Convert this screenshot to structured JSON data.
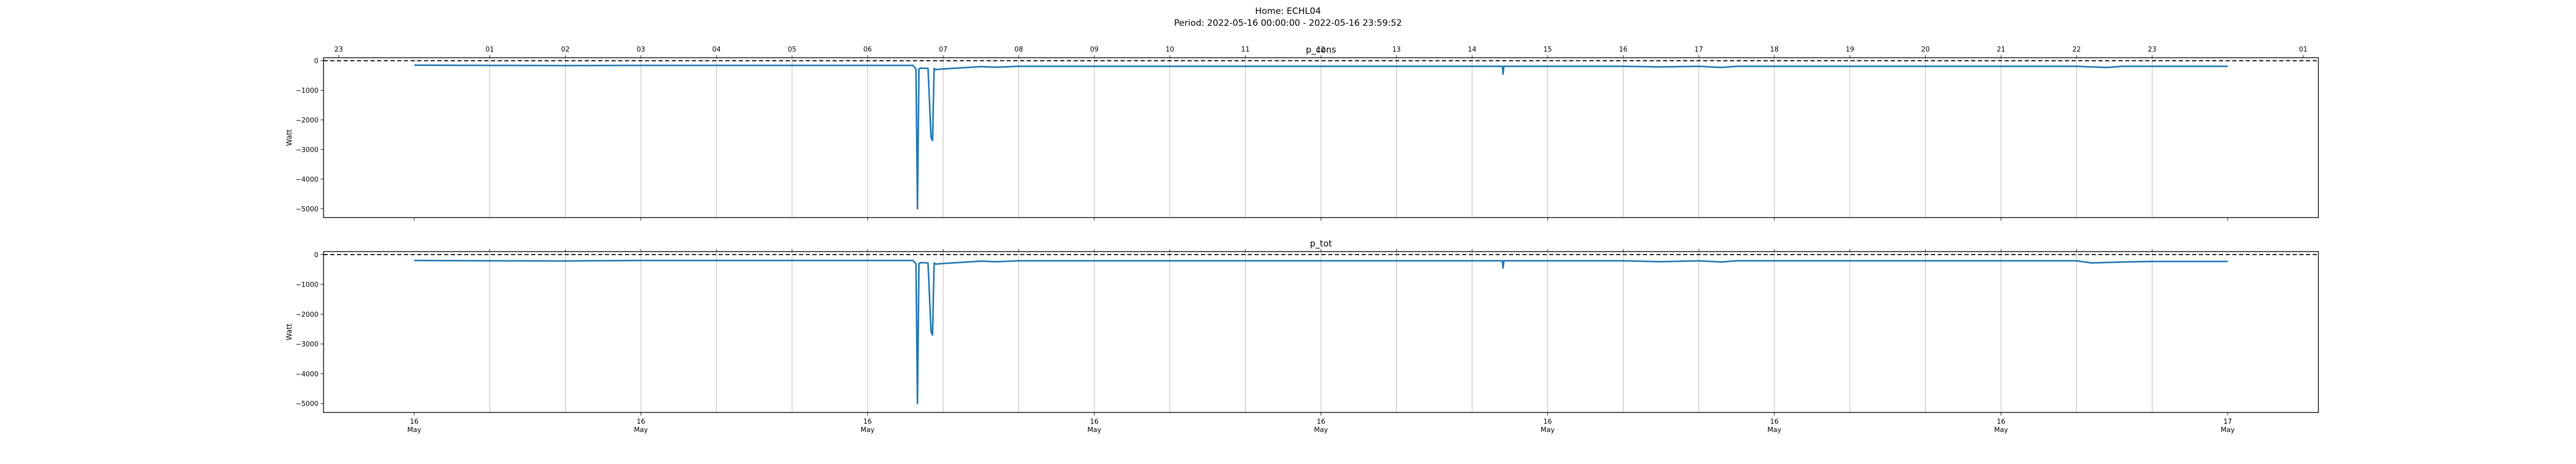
{
  "figure": {
    "title_line1": "Home: ECHL04",
    "title_line2": "Period: 2022-05-16 00:00:00 - 2022-05-16 23:59:52"
  },
  "chart_data": [
    {
      "type": "line",
      "title": "p_cons",
      "ylabel": "Watt",
      "xlabel": "",
      "ylim": [
        -5300,
        100
      ],
      "xlim_hours": [
        -1.2,
        25.2
      ],
      "y_ticks": [
        0,
        -1000,
        -2000,
        -3000,
        -4000,
        -5000
      ],
      "y_tick_labels": [
        "0",
        "−1000",
        "−2000",
        "−3000",
        "−4000",
        "−5000"
      ],
      "top_hour_ticks": [
        -1,
        1,
        2,
        3,
        4,
        5,
        6,
        7,
        8,
        9,
        10,
        11,
        12,
        13,
        14,
        15,
        16,
        17,
        18,
        19,
        20,
        21,
        22,
        23,
        25
      ],
      "top_hour_labels": [
        "23",
        "01",
        "02",
        "03",
        "04",
        "05",
        "06",
        "07",
        "08",
        "09",
        "10",
        "11",
        "12",
        "13",
        "14",
        "15",
        "16",
        "17",
        "18",
        "19",
        "20",
        "21",
        "22",
        "23",
        "01"
      ],
      "vertical_grid_hours": [
        1,
        2,
        3,
        4,
        5,
        6,
        7,
        8,
        9,
        10,
        11,
        12,
        13,
        14,
        15,
        16,
        17,
        18,
        19,
        20,
        21,
        22,
        23
      ],
      "reference_line_y": 0,
      "grid": true,
      "color": "#1f77b4",
      "series": [
        {
          "x_hours": [
            0,
            1,
            2,
            3,
            4,
            5,
            6,
            6.6,
            6.64,
            6.66,
            6.68,
            6.7,
            6.8,
            6.84,
            6.86,
            6.88,
            6.9,
            7.0,
            7.5,
            7.7,
            8.0,
            9,
            10,
            11,
            12,
            13,
            14,
            14.4,
            14.41,
            14.42,
            14.45,
            15,
            16,
            16.5,
            17.0,
            17.3,
            17.5,
            18,
            19,
            20,
            21,
            22,
            22.4,
            22.6,
            23,
            24
          ],
          "y": [
            -150,
            -160,
            -165,
            -160,
            -160,
            -160,
            -160,
            -160,
            -280,
            -5000,
            -280,
            -250,
            -260,
            -2600,
            -2700,
            -260,
            -300,
            -280,
            -200,
            -220,
            -190,
            -190,
            -190,
            -190,
            -190,
            -190,
            -190,
            -190,
            -450,
            -190,
            -190,
            -190,
            -190,
            -210,
            -190,
            -230,
            -190,
            -190,
            -190,
            -190,
            -190,
            -190,
            -230,
            -190,
            -190,
            -190
          ]
        }
      ]
    },
    {
      "type": "line",
      "title": "p_tot",
      "ylabel": "Watt",
      "xlabel": "",
      "ylim": [
        -5300,
        100
      ],
      "xlim_hours": [
        -1.2,
        25.2
      ],
      "y_ticks": [
        0,
        -1000,
        -2000,
        -3000,
        -4000,
        -5000
      ],
      "y_tick_labels": [
        "0",
        "−1000",
        "−2000",
        "−3000",
        "−4000",
        "−5000"
      ],
      "bottom_ticks_hours": [
        0,
        3,
        6,
        9,
        12,
        15,
        18,
        21,
        24
      ],
      "bottom_tick_labels_day": [
        "16",
        "16",
        "16",
        "16",
        "16",
        "16",
        "16",
        "16",
        "17"
      ],
      "bottom_tick_labels_month": [
        "May",
        "May",
        "May",
        "May",
        "May",
        "May",
        "May",
        "May",
        "May"
      ],
      "vertical_grid_hours": [
        1,
        2,
        3,
        4,
        5,
        6,
        7,
        8,
        9,
        10,
        11,
        12,
        13,
        14,
        15,
        16,
        17,
        18,
        19,
        20,
        21,
        22,
        23
      ],
      "reference_line_y": 0,
      "grid": true,
      "color": "#1f77b4",
      "series": [
        {
          "x_hours": [
            0,
            1,
            2,
            3,
            4,
            5,
            6,
            6.6,
            6.64,
            6.66,
            6.68,
            6.7,
            6.8,
            6.84,
            6.86,
            6.88,
            6.9,
            7.0,
            7.5,
            7.7,
            8.0,
            9,
            10,
            11,
            12,
            13,
            14,
            14.4,
            14.41,
            14.42,
            14.45,
            15,
            16,
            16.5,
            17.0,
            17.3,
            17.5,
            18,
            19,
            20,
            21,
            22,
            22.2,
            22.6,
            23,
            24
          ],
          "y": [
            -200,
            -210,
            -215,
            -200,
            -200,
            -200,
            -200,
            -200,
            -300,
            -5000,
            -300,
            -270,
            -280,
            -2600,
            -2700,
            -280,
            -320,
            -300,
            -220,
            -240,
            -210,
            -210,
            -210,
            -210,
            -210,
            -210,
            -210,
            -210,
            -450,
            -210,
            -210,
            -210,
            -210,
            -240,
            -210,
            -250,
            -210,
            -210,
            -210,
            -210,
            -210,
            -210,
            -280,
            -250,
            -230,
            -230
          ]
        }
      ]
    }
  ]
}
